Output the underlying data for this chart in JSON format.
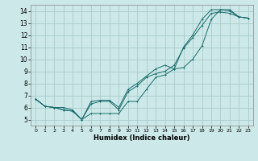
{
  "title": "",
  "xlabel": "Humidex (Indice chaleur)",
  "bg_color": "#cce8e8",
  "grid_color": "#aacccc",
  "line_color": "#1a6b6b",
  "xlim": [
    -0.5,
    23.5
  ],
  "ylim": [
    4.5,
    14.5
  ],
  "xticks": [
    0,
    1,
    2,
    3,
    4,
    5,
    6,
    7,
    8,
    9,
    10,
    11,
    12,
    13,
    14,
    15,
    16,
    17,
    18,
    19,
    20,
    21,
    22,
    23
  ],
  "yticks": [
    5,
    6,
    7,
    8,
    9,
    10,
    11,
    12,
    13,
    14
  ],
  "line1_x": [
    0,
    1,
    2,
    3,
    4,
    5,
    6,
    7,
    8,
    9,
    10,
    11,
    12,
    13,
    14,
    15,
    16,
    17,
    18,
    19,
    20,
    21,
    22,
    23
  ],
  "line1_y": [
    6.7,
    6.1,
    6.0,
    5.8,
    5.7,
    5.0,
    5.5,
    5.5,
    5.5,
    5.5,
    6.5,
    6.5,
    7.5,
    8.5,
    8.7,
    9.2,
    9.3,
    10.0,
    11.1,
    13.3,
    14.1,
    14.1,
    13.5,
    13.4
  ],
  "line2_x": [
    0,
    1,
    2,
    3,
    4,
    5,
    6,
    7,
    8,
    9,
    10,
    11,
    12,
    13,
    14,
    15,
    16,
    17,
    18,
    19,
    20,
    21,
    22,
    23
  ],
  "line2_y": [
    6.7,
    6.1,
    6.0,
    5.8,
    5.7,
    5.0,
    6.5,
    6.6,
    6.6,
    6.0,
    7.5,
    8.0,
    8.6,
    9.2,
    9.5,
    9.2,
    11.0,
    12.0,
    13.3,
    14.1,
    14.1,
    14.0,
    13.5,
    13.4
  ],
  "line3_x": [
    0,
    1,
    2,
    3,
    4,
    5,
    6,
    7,
    8,
    9,
    10,
    11,
    12,
    13,
    14,
    15,
    16,
    17,
    18,
    19,
    20,
    21,
    22,
    23
  ],
  "line3_y": [
    6.7,
    6.1,
    6.0,
    6.0,
    5.8,
    5.0,
    6.3,
    6.5,
    6.5,
    5.8,
    7.3,
    7.8,
    8.5,
    8.8,
    9.0,
    9.5,
    10.9,
    11.8,
    12.8,
    13.8,
    13.9,
    13.8,
    13.5,
    13.4
  ]
}
